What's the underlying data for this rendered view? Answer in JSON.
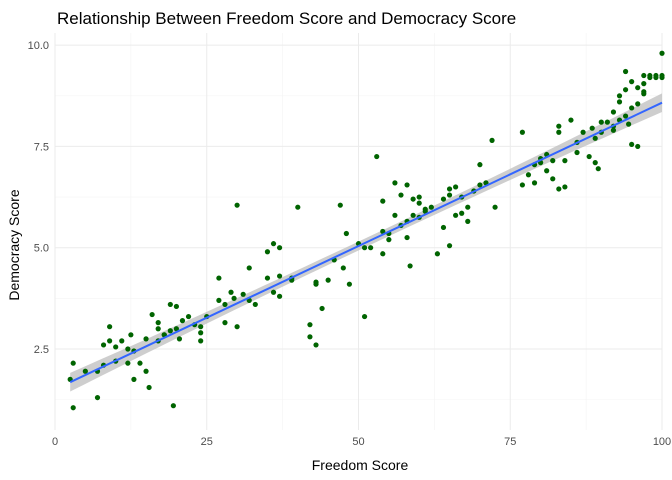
{
  "chart_data": {
    "type": "scatter",
    "title": "Relationship Between Freedom Score and Democracy Score",
    "xlabel": "Freedom Score",
    "ylabel": "Democracy Score",
    "xlim": [
      0,
      100
    ],
    "ylim": [
      0.5,
      10.3
    ],
    "x_ticks": [
      0,
      25,
      50,
      75,
      100
    ],
    "x_tick_labels": [
      "0",
      "25",
      "50",
      "75",
      "100"
    ],
    "y_ticks": [
      2.5,
      5.0,
      7.5,
      10.0
    ],
    "y_tick_labels": [
      "2.5",
      "5.0",
      "7.5",
      "10.0"
    ],
    "grid": true,
    "point_color": "#006400",
    "fit_line_color": "#3366ff",
    "confidence_band_color": "#bdbdbd",
    "fit_line": {
      "x": [
        2.5,
        100
      ],
      "y": [
        1.68,
        8.58
      ]
    },
    "points": [
      [
        3,
        1.05
      ],
      [
        2.5,
        1.75
      ],
      [
        3,
        2.15
      ],
      [
        5,
        1.95
      ],
      [
        7,
        1.95
      ],
      [
        7,
        1.3
      ],
      [
        8,
        2.6
      ],
      [
        8,
        2.1
      ],
      [
        9,
        3.05
      ],
      [
        9,
        2.7
      ],
      [
        10,
        2.55
      ],
      [
        10,
        2.2
      ],
      [
        11,
        2.7
      ],
      [
        12,
        2.5
      ],
      [
        12,
        2.15
      ],
      [
        12.5,
        2.85
      ],
      [
        13,
        2.45
      ],
      [
        13,
        1.75
      ],
      [
        14,
        2.15
      ],
      [
        15,
        1.95
      ],
      [
        15,
        2.75
      ],
      [
        15.5,
        1.55
      ],
      [
        16,
        3.35
      ],
      [
        17,
        3.15
      ],
      [
        17,
        3.0
      ],
      [
        17,
        2.7
      ],
      [
        18,
        2.85
      ],
      [
        18,
        2.85
      ],
      [
        19,
        3.6
      ],
      [
        19.5,
        1.1
      ],
      [
        19,
        2.95
      ],
      [
        20,
        3.55
      ],
      [
        20,
        3.0
      ],
      [
        20.5,
        2.75
      ],
      [
        21,
        3.2
      ],
      [
        22,
        3.3
      ],
      [
        23,
        3.1
      ],
      [
        24,
        3.05
      ],
      [
        24,
        2.9
      ],
      [
        24,
        2.7
      ],
      [
        25,
        3.3
      ],
      [
        27,
        3.7
      ],
      [
        27,
        4.25
      ],
      [
        28,
        3.15
      ],
      [
        28,
        3.6
      ],
      [
        29,
        3.9
      ],
      [
        29.5,
        3.75
      ],
      [
        30,
        3.05
      ],
      [
        30,
        6.05
      ],
      [
        31,
        3.85
      ],
      [
        32,
        3.7
      ],
      [
        32,
        4.5
      ],
      [
        33,
        3.6
      ],
      [
        35,
        4.9
      ],
      [
        35,
        4.25
      ],
      [
        36,
        5.1
      ],
      [
        36,
        3.9
      ],
      [
        37,
        5.0
      ],
      [
        37,
        4.3
      ],
      [
        37,
        3.8
      ],
      [
        39,
        4.25
      ],
      [
        39,
        4.2
      ],
      [
        40,
        6.0
      ],
      [
        42,
        3.1
      ],
      [
        42,
        2.8
      ],
      [
        43,
        4.1
      ],
      [
        43,
        2.6
      ],
      [
        43,
        4.15
      ],
      [
        44,
        3.5
      ],
      [
        45,
        4.2
      ],
      [
        46,
        4.7
      ],
      [
        47,
        6.05
      ],
      [
        47.5,
        4.5
      ],
      [
        48,
        5.35
      ],
      [
        48.5,
        4.1
      ],
      [
        50,
        5.1
      ],
      [
        51,
        3.3
      ],
      [
        51,
        5.0
      ],
      [
        52,
        5.0
      ],
      [
        53,
        7.25
      ],
      [
        54,
        5.4
      ],
      [
        54,
        6.15
      ],
      [
        54,
        4.85
      ],
      [
        55,
        5.35
      ],
      [
        55,
        5.2
      ],
      [
        56,
        6.6
      ],
      [
        56,
        5.8
      ],
      [
        57,
        5.55
      ],
      [
        57,
        6.3
      ],
      [
        58,
        5.25
      ],
      [
        58,
        6.55
      ],
      [
        58,
        5.65
      ],
      [
        58.5,
        4.55
      ],
      [
        59,
        6.2
      ],
      [
        59,
        5.8
      ],
      [
        60,
        6.25
      ],
      [
        60,
        5.75
      ],
      [
        60,
        6.1
      ],
      [
        61,
        5.9
      ],
      [
        61,
        5.95
      ],
      [
        62,
        6.0
      ],
      [
        63,
        4.85
      ],
      [
        64,
        5.5
      ],
      [
        64,
        6.2
      ],
      [
        65,
        5.05
      ],
      [
        65,
        6.45
      ],
      [
        65,
        6.3
      ],
      [
        66,
        5.8
      ],
      [
        66,
        6.5
      ],
      [
        67,
        6.25
      ],
      [
        67,
        5.85
      ],
      [
        68,
        6.0
      ],
      [
        68,
        5.65
      ],
      [
        69,
        6.4
      ],
      [
        70,
        7.05
      ],
      [
        70,
        6.55
      ],
      [
        71,
        6.6
      ],
      [
        72,
        7.65
      ],
      [
        72.5,
        6.0
      ],
      [
        77,
        7.85
      ],
      [
        77,
        6.55
      ],
      [
        78,
        6.8
      ],
      [
        79,
        7.05
      ],
      [
        79,
        6.6
      ],
      [
        80,
        7.1
      ],
      [
        80,
        7.2
      ],
      [
        81,
        7.3
      ],
      [
        81,
        6.9
      ],
      [
        82,
        6.7
      ],
      [
        82,
        7.15
      ],
      [
        83,
        8.0
      ],
      [
        83,
        7.85
      ],
      [
        83,
        6.45
      ],
      [
        84,
        7.15
      ],
      [
        84,
        6.5
      ],
      [
        85,
        8.15
      ],
      [
        86,
        7.6
      ],
      [
        86,
        7.35
      ],
      [
        87,
        7.85
      ],
      [
        88,
        7.25
      ],
      [
        88.5,
        7.95
      ],
      [
        89,
        7.1
      ],
      [
        89,
        7.7
      ],
      [
        89.5,
        6.95
      ],
      [
        90,
        8.1
      ],
      [
        90,
        7.85
      ],
      [
        91,
        8.1
      ],
      [
        92,
        8.35
      ],
      [
        92,
        7.9
      ],
      [
        92,
        8.0
      ],
      [
        93,
        8.75
      ],
      [
        93,
        8.15
      ],
      [
        93,
        8.6
      ],
      [
        94,
        9.35
      ],
      [
        94,
        8.9
      ],
      [
        94,
        8.25
      ],
      [
        94.5,
        8.05
      ],
      [
        95,
        9.1
      ],
      [
        95,
        8.45
      ],
      [
        95,
        7.55
      ],
      [
        96,
        8.95
      ],
      [
        96,
        7.5
      ],
      [
        96,
        8.55
      ],
      [
        97,
        9.25
      ],
      [
        97,
        9.05
      ],
      [
        97,
        8.85
      ],
      [
        97,
        8.8
      ],
      [
        98,
        9.2
      ],
      [
        98,
        9.25
      ],
      [
        99,
        9.2
      ],
      [
        99,
        9.25
      ],
      [
        100,
        9.2
      ],
      [
        100,
        9.25
      ],
      [
        100,
        9.8
      ]
    ]
  }
}
